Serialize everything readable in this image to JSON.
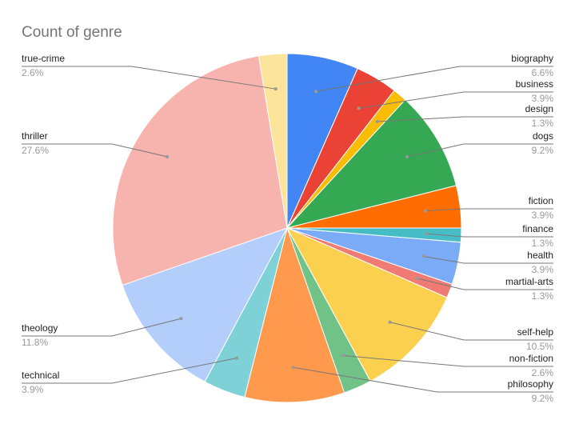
{
  "chart_data": {
    "type": "pie",
    "title": "Count of genre",
    "categories": [
      "biography",
      "business",
      "design",
      "dogs",
      "fiction",
      "finance",
      "health",
      "martial-arts",
      "self-help",
      "non-fiction",
      "philosophy",
      "technical",
      "theology",
      "thriller",
      "true-crime"
    ],
    "values": [
      6.6,
      3.9,
      1.3,
      9.2,
      3.9,
      1.3,
      3.9,
      1.3,
      10.5,
      2.6,
      9.2,
      3.9,
      11.8,
      27.6,
      2.6
    ],
    "value_labels": [
      "6.6%",
      "3.9%",
      "1.3%",
      "9.2%",
      "3.9%",
      "1.3%",
      "3.9%",
      "1.3%",
      "10.5%",
      "2.6%",
      "9.2%",
      "3.9%",
      "11.8%",
      "27.6%",
      "2.6%"
    ],
    "colors": [
      "#4285f4",
      "#ea4335",
      "#fbbc04",
      "#34a853",
      "#ff6d01",
      "#46bdc6",
      "#7baaf7",
      "#f07b72",
      "#fcd04f",
      "#71c287",
      "#ff994d",
      "#7ed1d7",
      "#b3cefb",
      "#f7b4ae",
      "#fde49b"
    ]
  }
}
